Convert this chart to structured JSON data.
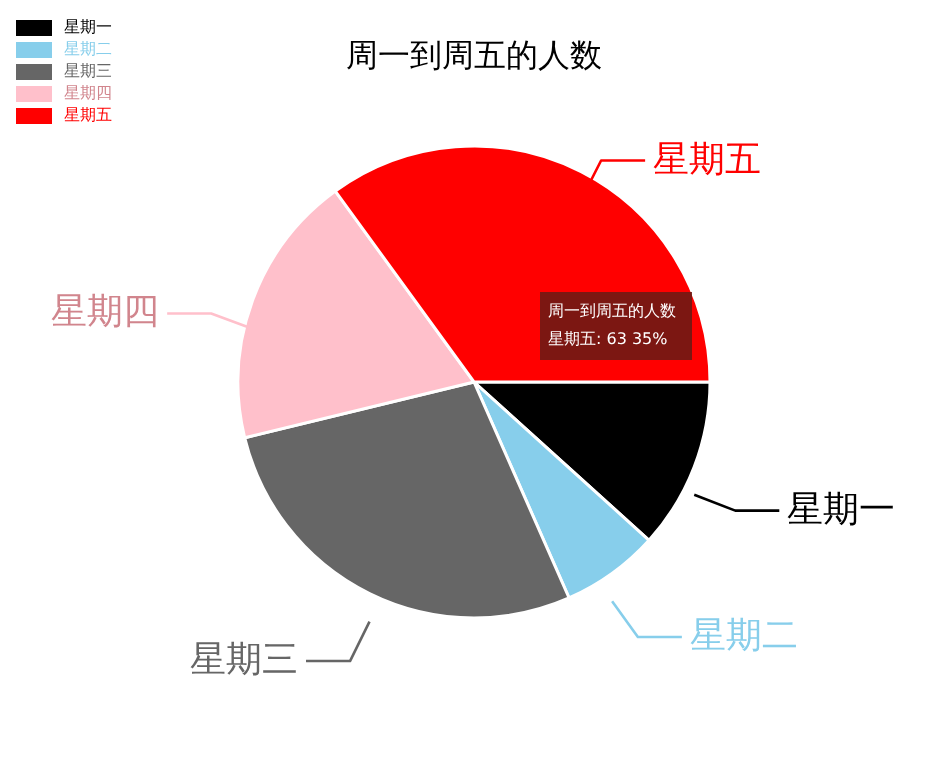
{
  "chart_data": {
    "type": "pie",
    "title": "周一到周五的人数",
    "categories": [
      "星期一",
      "星期二",
      "星期三",
      "星期四",
      "星期五"
    ],
    "values": [
      11.7,
      6.7,
      27.8,
      18.8,
      35
    ],
    "colors": [
      "#000000",
      "#87ceeb",
      "#666666",
      "#ffc0cb",
      "#ff0000"
    ],
    "legend": "top left",
    "annotations": [
      "周一到周五的人数",
      "星期五: 63 35%"
    ]
  }
}
